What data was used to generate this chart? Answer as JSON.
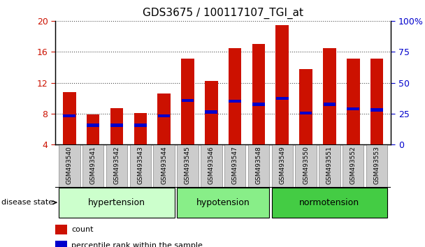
{
  "title": "GDS3675 / 100117107_TGI_at",
  "samples": [
    "GSM493540",
    "GSM493541",
    "GSM493542",
    "GSM493543",
    "GSM493544",
    "GSM493545",
    "GSM493546",
    "GSM493547",
    "GSM493548",
    "GSM493549",
    "GSM493550",
    "GSM493551",
    "GSM493552",
    "GSM493553"
  ],
  "count_values": [
    10.8,
    7.9,
    8.7,
    8.1,
    10.6,
    15.1,
    12.2,
    16.5,
    17.0,
    19.5,
    13.8,
    16.5,
    15.1,
    15.1
  ],
  "percentile_values": [
    7.7,
    6.5,
    6.5,
    6.5,
    7.7,
    9.7,
    8.2,
    9.6,
    9.2,
    10.0,
    8.1,
    9.2,
    8.6,
    8.5
  ],
  "bar_bottom": 4.0,
  "ylim_left": [
    4,
    20
  ],
  "ylim_right": [
    0,
    100
  ],
  "yticks_left": [
    4,
    8,
    12,
    16,
    20
  ],
  "yticks_right": [
    0,
    25,
    50,
    75,
    100
  ],
  "ytick_labels_right": [
    "0",
    "25",
    "50",
    "75",
    "100%"
  ],
  "group_configs": [
    {
      "start": 0,
      "end": 4,
      "label": "hypertension",
      "color": "#ccffcc"
    },
    {
      "start": 5,
      "end": 8,
      "label": "hypotension",
      "color": "#88ee88"
    },
    {
      "start": 9,
      "end": 13,
      "label": "normotension",
      "color": "#44cc44"
    }
  ],
  "bar_color": "#cc1100",
  "percentile_color": "#0000cc",
  "bar_width": 0.55,
  "grid_color": "#000000",
  "tick_label_color_left": "#cc1100",
  "tick_label_color_right": "#0000cc",
  "xtick_bg_color": "#cccccc",
  "disease_state_label": "disease state",
  "legend_count_label": "count",
  "legend_percentile_label": "percentile rank within the sample",
  "figsize": [
    6.08,
    3.54
  ],
  "dpi": 100
}
